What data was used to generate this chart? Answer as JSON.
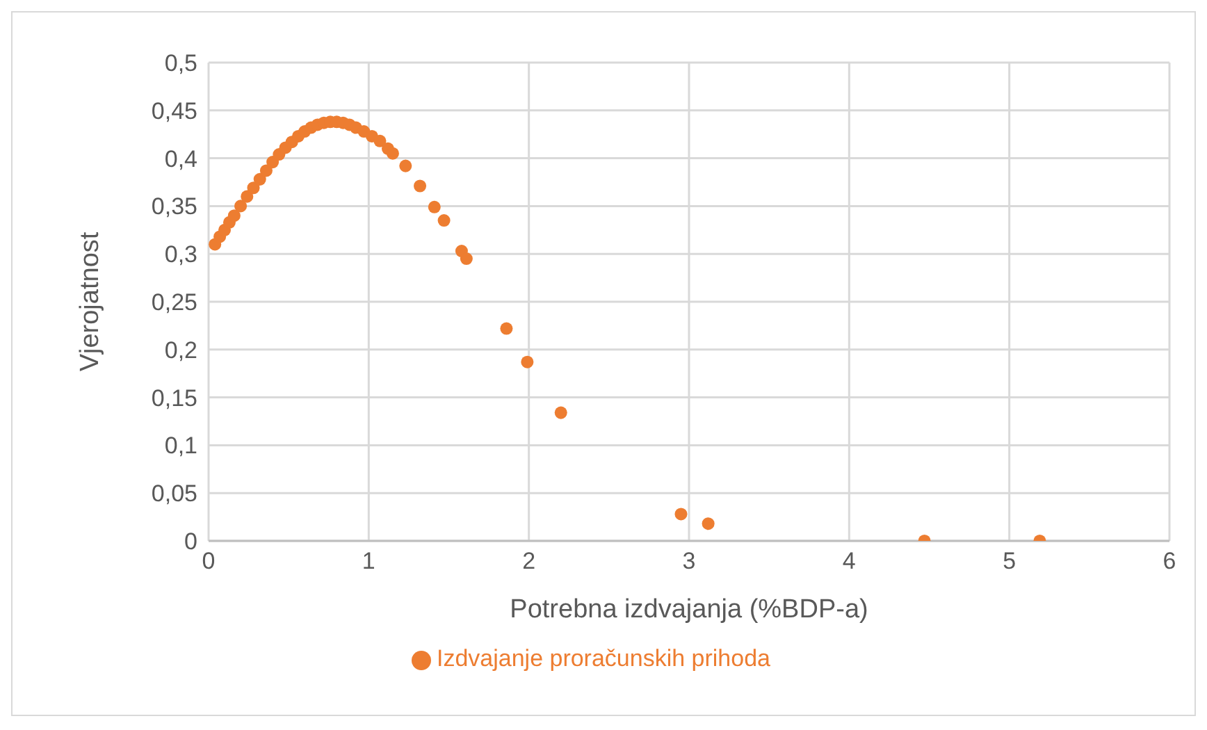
{
  "chart_data": {
    "type": "scatter",
    "xlabel": "Potrebna izdvajanja (%BDP-a)",
    "ylabel": "Vjerojatnost",
    "xlim": [
      0,
      6
    ],
    "xticks": [
      0,
      1,
      2,
      3,
      4,
      5,
      6
    ],
    "ylim": [
      0,
      0.5
    ],
    "yticks": [
      {
        "value": 0,
        "label": "0"
      },
      {
        "value": 0.05,
        "label": "0,05"
      },
      {
        "value": 0.1,
        "label": "0,1"
      },
      {
        "value": 0.15,
        "label": "0,15"
      },
      {
        "value": 0.2,
        "label": "0,2"
      },
      {
        "value": 0.25,
        "label": "0,25"
      },
      {
        "value": 0.3,
        "label": "0,3"
      },
      {
        "value": 0.35,
        "label": "0,35"
      },
      {
        "value": 0.4,
        "label": "0,4"
      },
      {
        "value": 0.45,
        "label": "0,45"
      },
      {
        "value": 0.5,
        "label": "0,5"
      }
    ],
    "grid": true,
    "legend": "bottom",
    "marker": "circle",
    "series": [
      {
        "name": "Izdvajanje proračunskih prihoda",
        "color": "#ed7d31",
        "x": [
          0.04,
          0.07,
          0.1,
          0.13,
          0.16,
          0.2,
          0.24,
          0.28,
          0.32,
          0.36,
          0.4,
          0.44,
          0.48,
          0.52,
          0.56,
          0.6,
          0.64,
          0.68,
          0.72,
          0.76,
          0.8,
          0.84,
          0.88,
          0.92,
          0.97,
          1.02,
          1.07,
          1.12,
          1.15,
          1.23,
          1.32,
          1.41,
          1.47,
          1.58,
          1.61,
          1.86,
          1.99,
          2.2,
          2.95,
          3.12,
          4.47,
          5.19
        ],
        "values": [
          0.31,
          0.318,
          0.325,
          0.333,
          0.34,
          0.35,
          0.36,
          0.369,
          0.378,
          0.387,
          0.396,
          0.404,
          0.411,
          0.417,
          0.423,
          0.428,
          0.432,
          0.435,
          0.437,
          0.438,
          0.438,
          0.437,
          0.435,
          0.432,
          0.428,
          0.423,
          0.418,
          0.41,
          0.405,
          0.392,
          0.371,
          0.349,
          0.335,
          0.303,
          0.295,
          0.222,
          0.187,
          0.134,
          0.028,
          0.018,
          0,
          0
        ]
      }
    ]
  }
}
